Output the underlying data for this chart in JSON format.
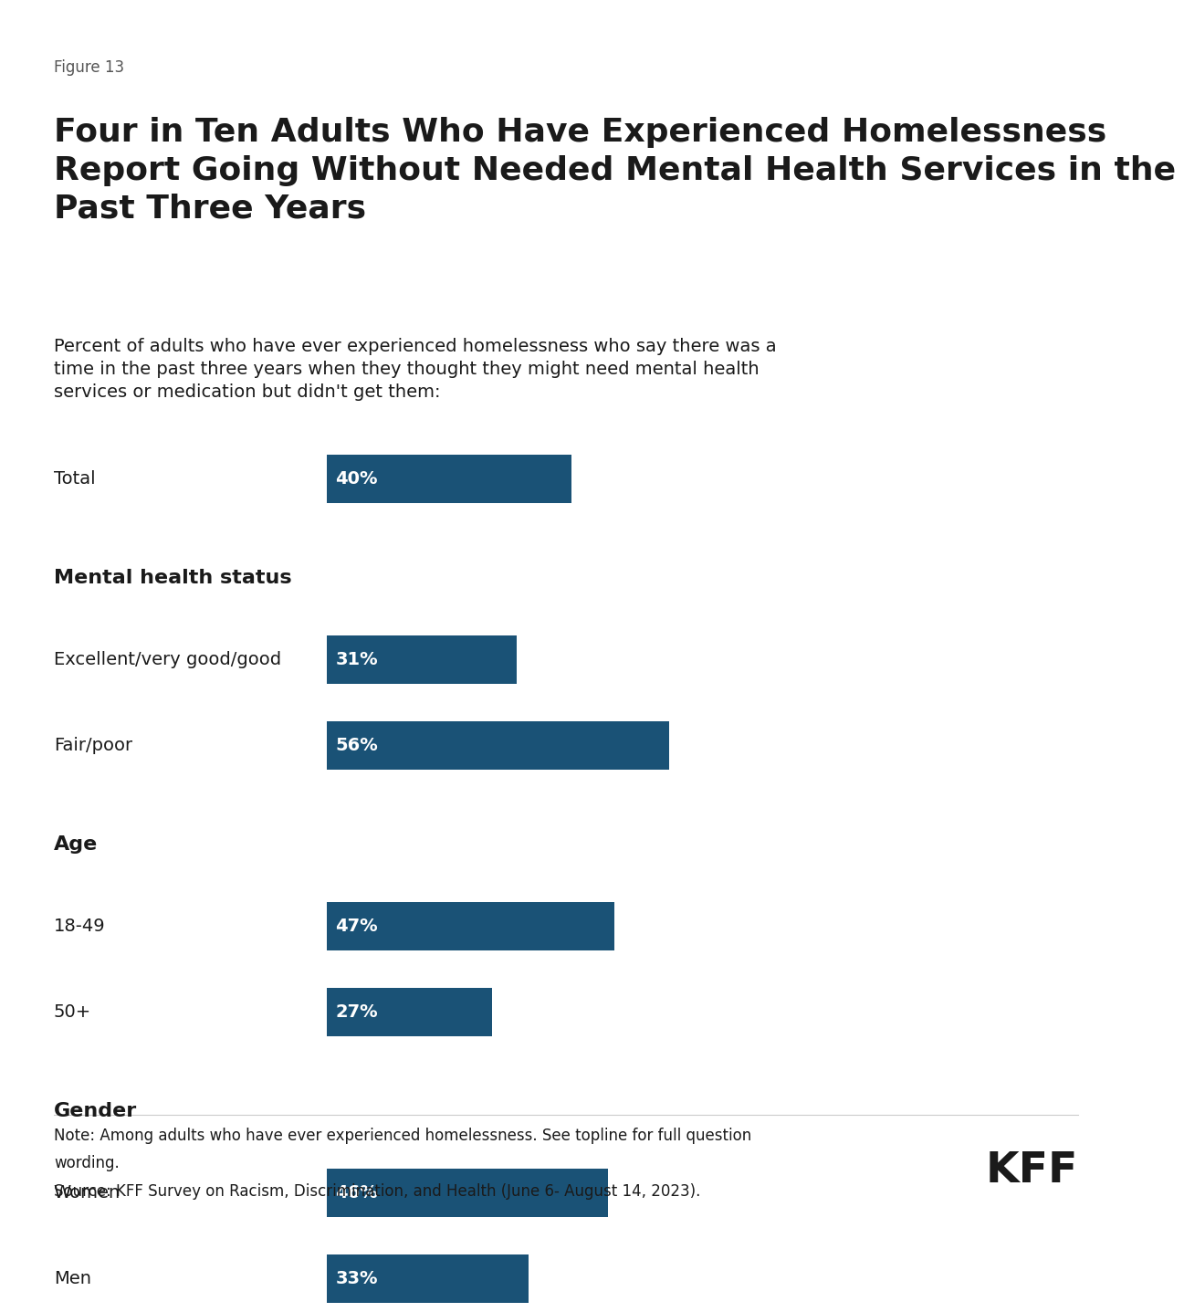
{
  "figure_label": "Figure 13",
  "title": "Four in Ten Adults Who Have Experienced Homelessness\nReport Going Without Needed Mental Health Services in the\nPast Three Years",
  "subtitle": "Percent of adults who have ever experienced homelessness who say there was a\ntime in the past three years when they thought they might need mental health\nservices or medication but didn't get them:",
  "bar_color": "#1a5276",
  "categories": [
    {
      "label": "Total",
      "value": 40,
      "is_header": false
    },
    {
      "label": "Mental health status",
      "value": null,
      "is_header": true
    },
    {
      "label": "Excellent/very good/good",
      "value": 31,
      "is_header": false
    },
    {
      "label": "Fair/poor",
      "value": 56,
      "is_header": false
    },
    {
      "label": "Age",
      "value": null,
      "is_header": true
    },
    {
      "label": "18-49",
      "value": 47,
      "is_header": false
    },
    {
      "label": "50+",
      "value": 27,
      "is_header": false
    },
    {
      "label": "Gender",
      "value": null,
      "is_header": true
    },
    {
      "label": "Women",
      "value": 46,
      "is_header": false
    },
    {
      "label": "Men",
      "value": 33,
      "is_header": false
    }
  ],
  "note_line1": "Note: Among adults who have ever experienced homelessness. See topline for full question",
  "note_line2": "wording.",
  "source_line": "Source: KFF Survey on Racism, Discrimination, and Health (June 6- August 14, 2023).",
  "kff_logo_text": "KFF",
  "background_color": "#ffffff",
  "text_color": "#1a1a1a",
  "label_fontsize": 14,
  "value_fontsize": 14,
  "header_fontsize": 16,
  "title_fontsize": 26,
  "subtitle_fontsize": 14,
  "note_fontsize": 12
}
